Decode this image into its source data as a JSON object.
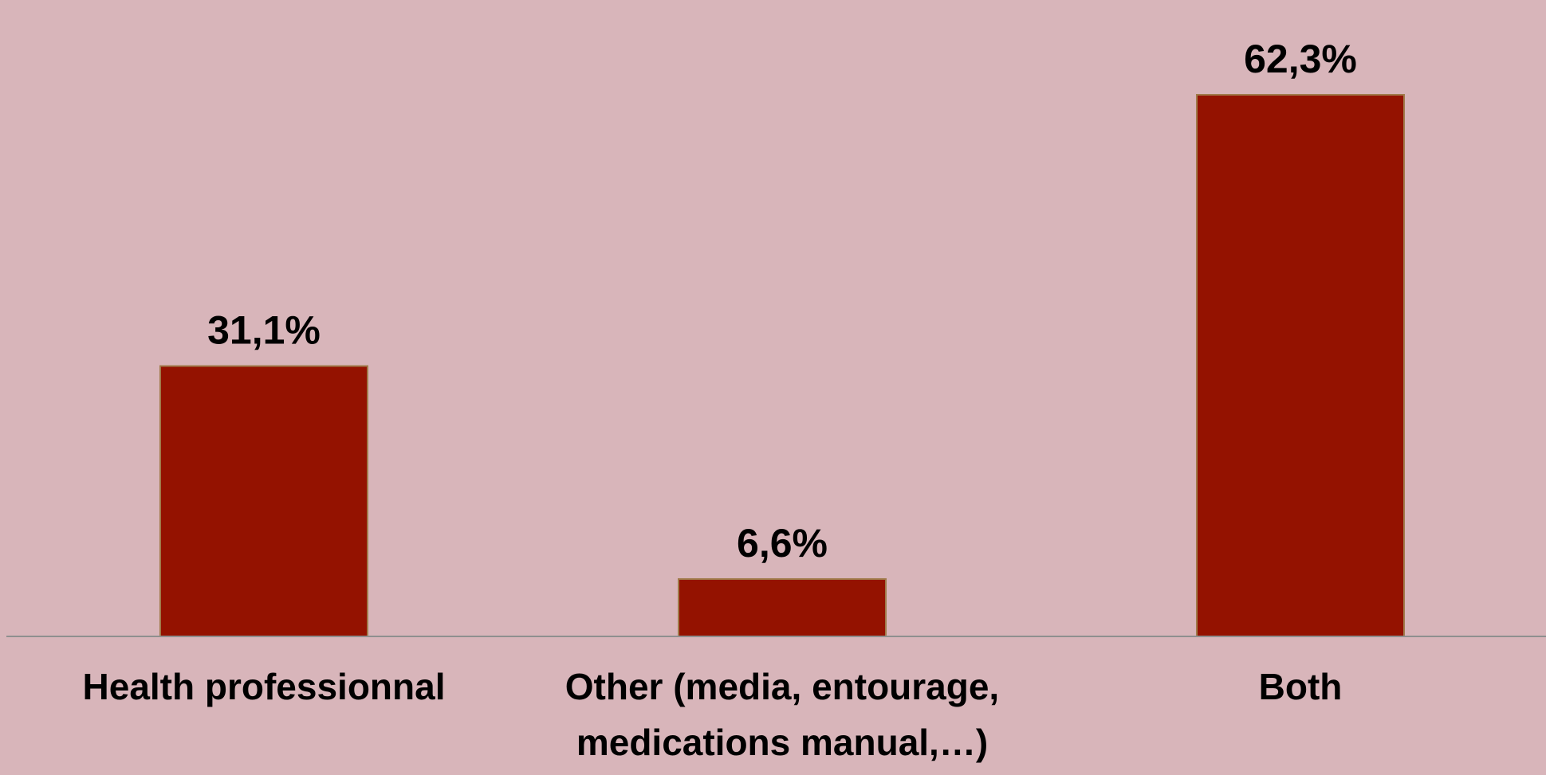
{
  "colors": {
    "background": "#d8b5ba",
    "bar": "#941200",
    "axis": "#8f8f8f"
  },
  "chart_data": {
    "type": "bar",
    "categories": [
      [
        "Health professionnal"
      ],
      [
        "Other (media, entourage,",
        "medications manual,…)"
      ],
      [
        "Both"
      ]
    ],
    "values": [
      31.1,
      6.6,
      62.3
    ],
    "value_labels": [
      "31,1%",
      "6,6%",
      "62,3%"
    ],
    "unit": "%",
    "ylim": [
      0,
      62.3
    ],
    "grid": false,
    "legend": "none",
    "title": "",
    "xlabel": "",
    "ylabel": ""
  }
}
